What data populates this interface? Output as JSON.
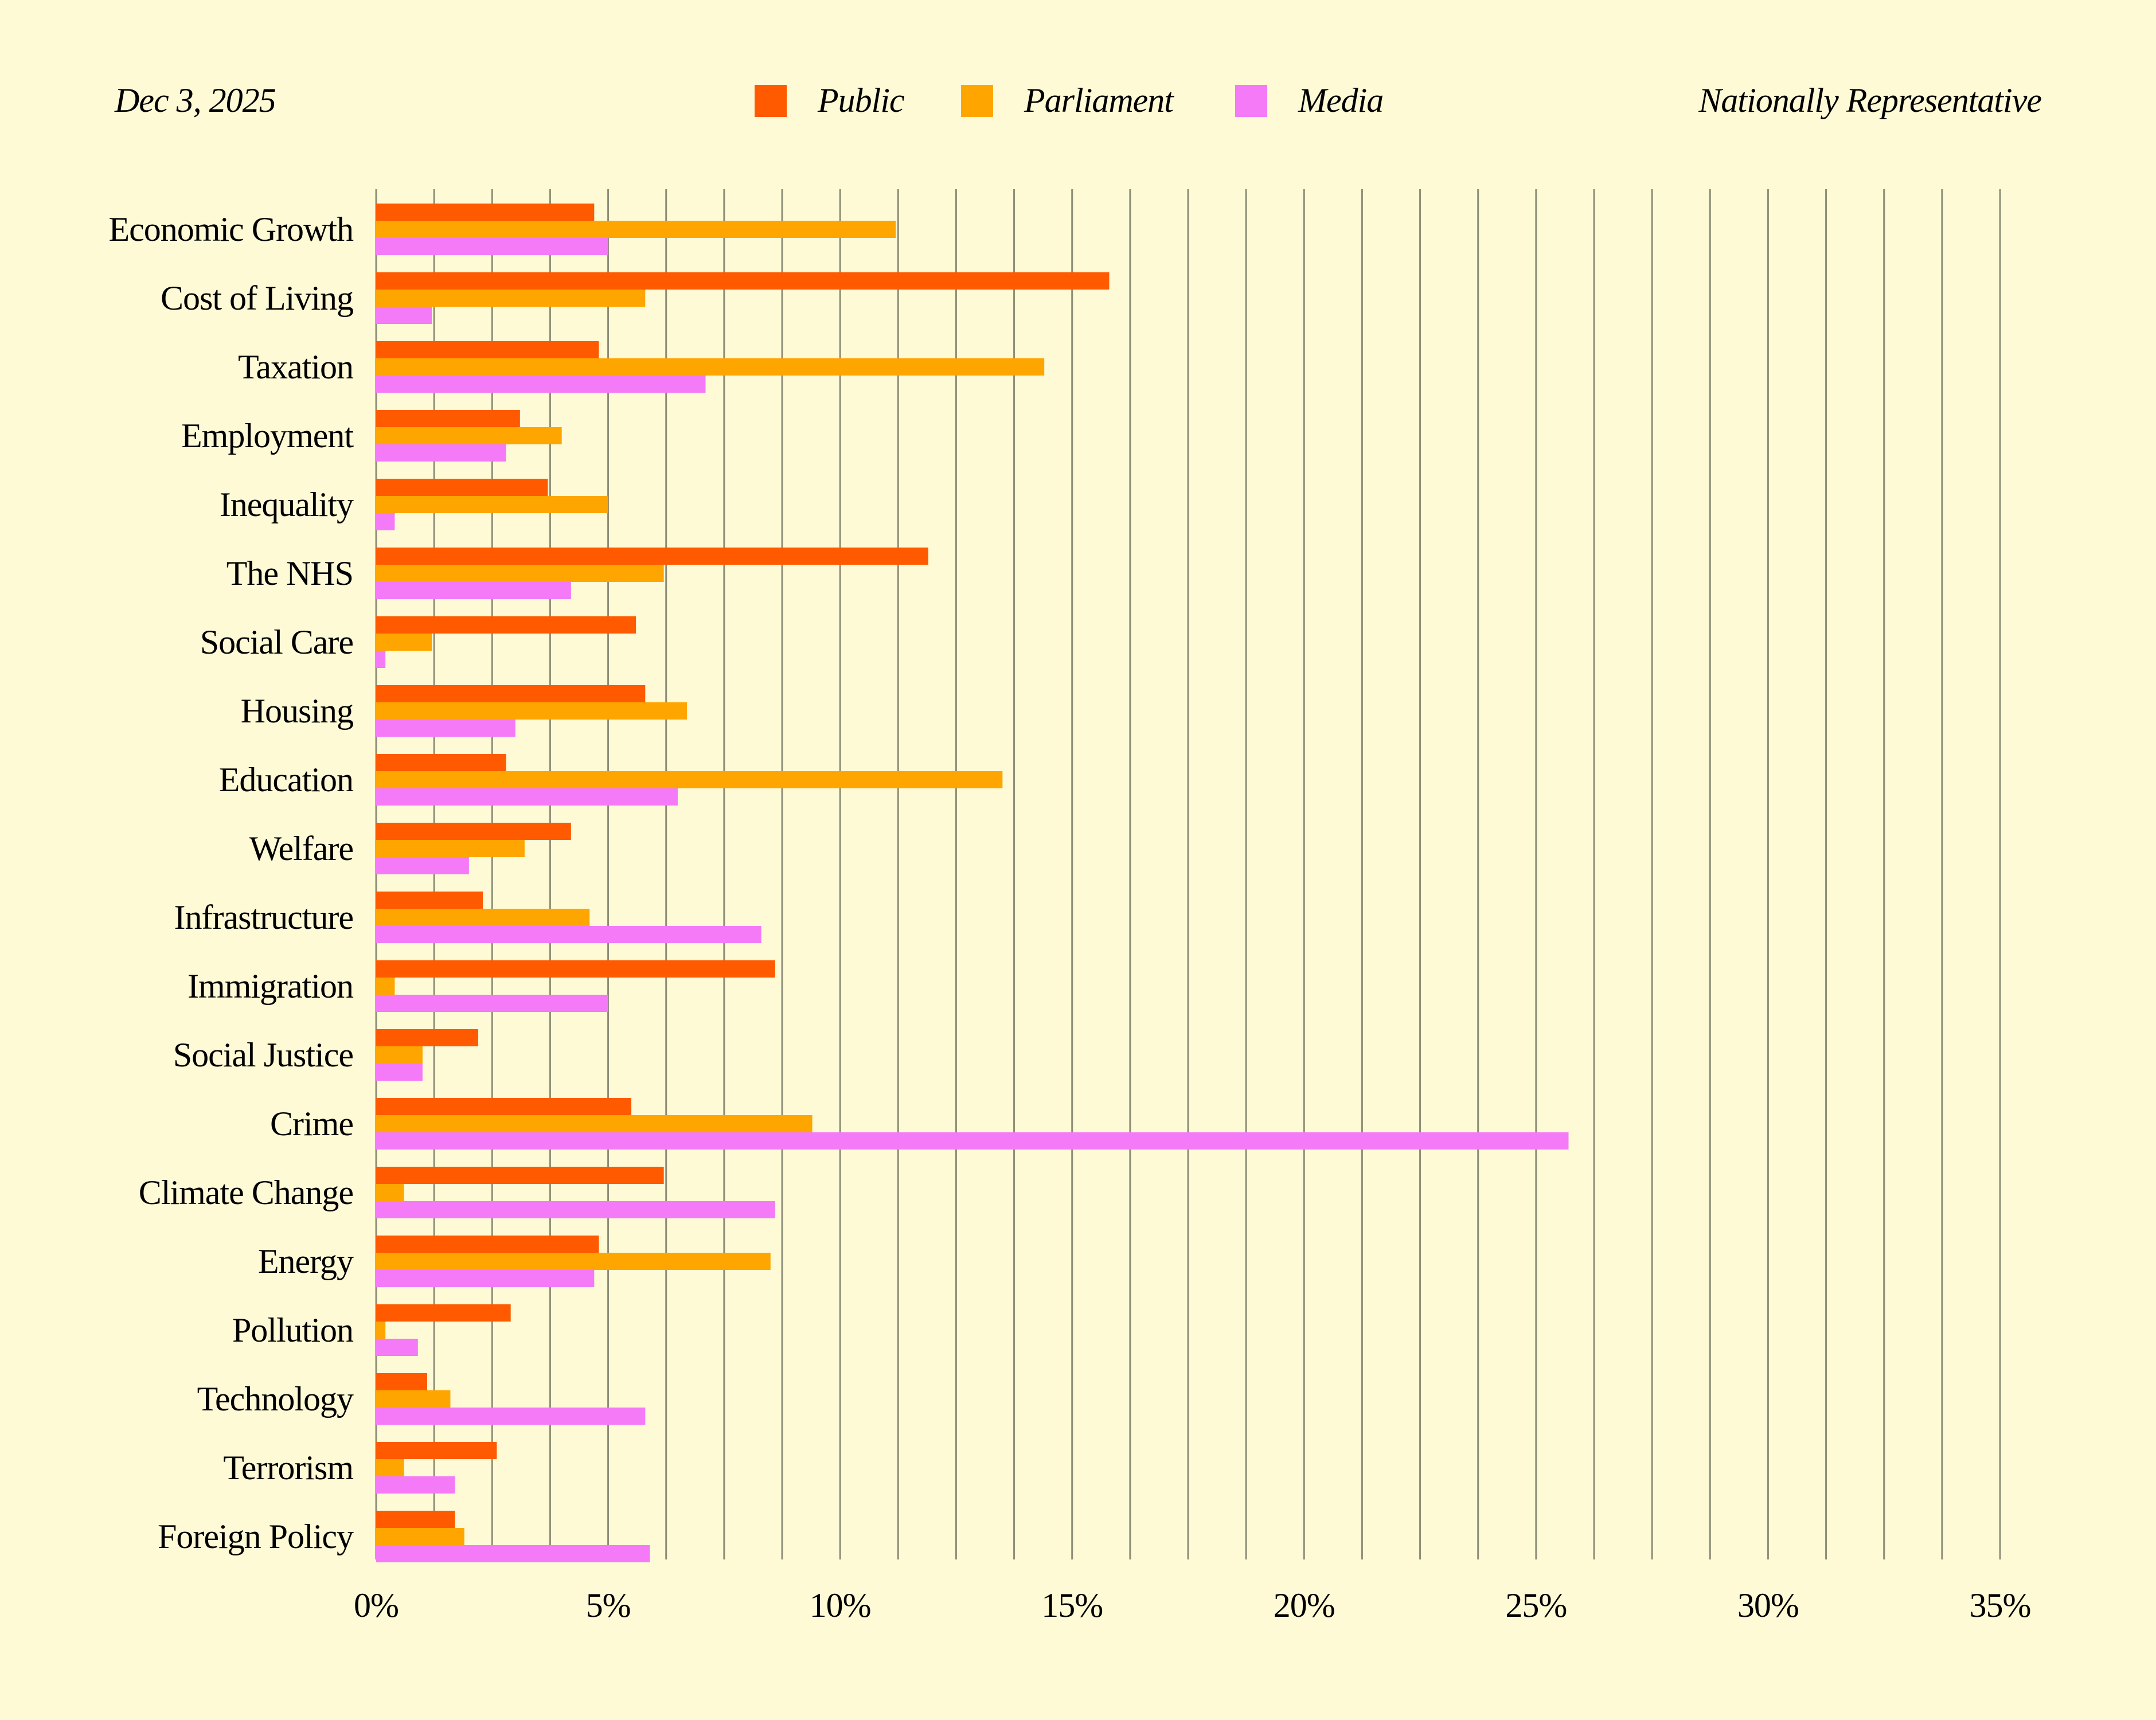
{
  "header": {
    "date": "Dec 3, 2025",
    "sample": "Nationally Representative"
  },
  "colors": {
    "background": "#FEFAD6",
    "Public": "#FF5A00",
    "Parliament": "#FFA500",
    "Media": "#F47AF7"
  },
  "chart_data": {
    "type": "bar",
    "orientation": "horizontal",
    "title": "",
    "xlabel": "",
    "ylabel": "",
    "xlim": [
      0,
      35
    ],
    "grid": "vertical",
    "legend_position": "top-center",
    "x_ticks": [
      0,
      5,
      10,
      15,
      20,
      25,
      30,
      35
    ],
    "x_tick_labels": [
      "0%",
      "5%",
      "10%",
      "15%",
      "20%",
      "25%",
      "30%",
      "35%"
    ],
    "categories": [
      "Economic Growth",
      "Cost of Living",
      "Taxation",
      "Employment",
      "Inequality",
      "The NHS",
      "Social Care",
      "Housing",
      "Education",
      "Welfare",
      "Infrastructure",
      "Immigration",
      "Social Justice",
      "Crime",
      "Climate Change",
      "Energy",
      "Pollution",
      "Technology",
      "Terrorism",
      "Foreign Policy"
    ],
    "series": [
      {
        "name": "Public",
        "values": [
          4.7,
          15.8,
          4.8,
          3.1,
          3.7,
          11.9,
          5.6,
          5.8,
          2.8,
          4.2,
          2.3,
          8.6,
          2.2,
          5.5,
          6.2,
          4.8,
          2.9,
          1.1,
          2.6,
          1.7
        ]
      },
      {
        "name": "Parliament",
        "values": [
          11.2,
          5.8,
          14.4,
          4.0,
          5.0,
          6.2,
          1.2,
          6.7,
          13.5,
          3.2,
          4.6,
          0.4,
          1.0,
          9.4,
          0.6,
          8.5,
          0.2,
          1.6,
          0.6,
          1.9
        ]
      },
      {
        "name": "Media",
        "values": [
          5.0,
          1.2,
          7.1,
          2.8,
          0.4,
          4.2,
          0.2,
          3.0,
          6.5,
          2.0,
          8.3,
          5.0,
          1.0,
          25.7,
          8.6,
          4.7,
          0.9,
          5.8,
          1.7,
          5.9
        ]
      }
    ]
  }
}
